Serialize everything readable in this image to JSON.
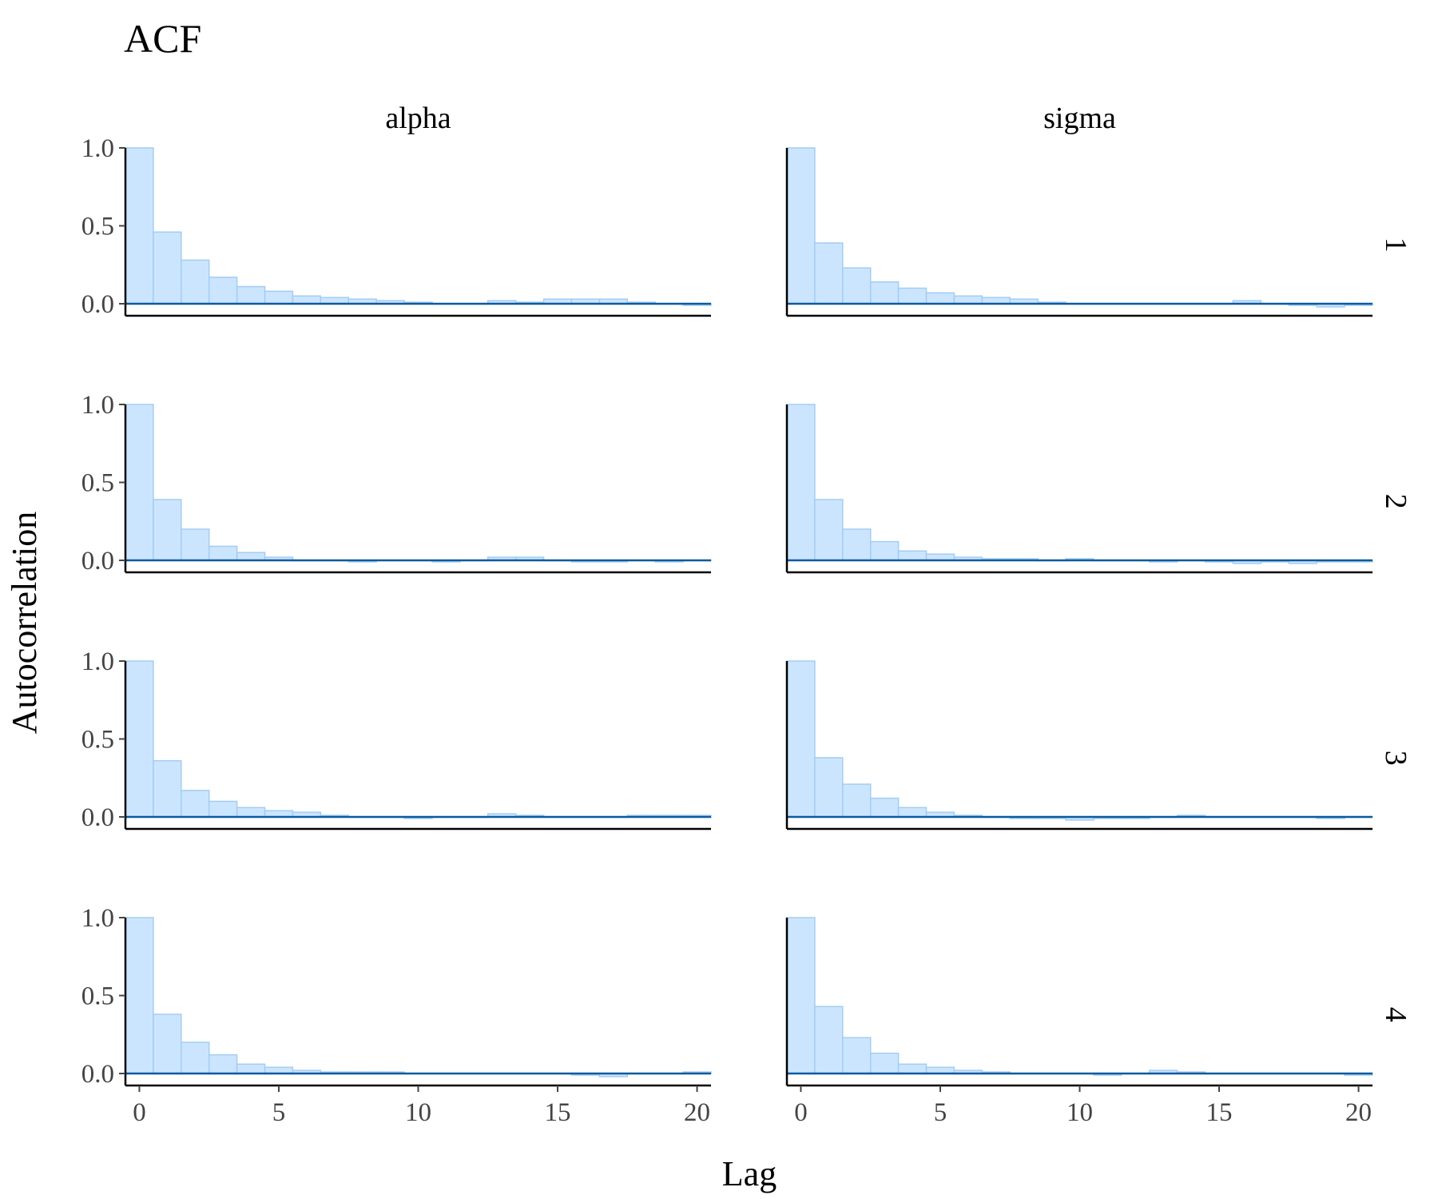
{
  "chart_data": {
    "type": "bar",
    "title": "ACF",
    "xlabel": "Lag",
    "ylabel": "Autocorrelation",
    "x_ticks": [
      0,
      5,
      10,
      15,
      20
    ],
    "y_ticks": [
      "0.0",
      "0.5",
      "1.0"
    ],
    "xlim": [
      -0.5,
      20.5
    ],
    "ylim": [
      -0.07,
      1.1
    ],
    "lags": [
      0,
      1,
      2,
      3,
      4,
      5,
      6,
      7,
      8,
      9,
      10,
      11,
      12,
      13,
      14,
      15,
      16,
      17,
      18,
      19,
      20
    ],
    "columns": [
      "alpha",
      "sigma"
    ],
    "rows": [
      "1",
      "2",
      "3",
      "4"
    ],
    "colors": {
      "bar_fill": "#cce5ff",
      "bar_outline": "#a3cdf2",
      "zero_line": "#0a5aa0"
    },
    "panels": [
      {
        "column": "alpha",
        "row": "1",
        "values": [
          1.0,
          0.46,
          0.28,
          0.17,
          0.11,
          0.08,
          0.05,
          0.04,
          0.03,
          0.02,
          0.01,
          0.0,
          0.0,
          0.02,
          0.01,
          0.03,
          0.03,
          0.03,
          0.01,
          0.0,
          -0.01
        ]
      },
      {
        "column": "sigma",
        "row": "1",
        "values": [
          1.0,
          0.39,
          0.23,
          0.14,
          0.1,
          0.07,
          0.05,
          0.04,
          0.03,
          0.01,
          0.0,
          0.0,
          0.0,
          0.0,
          0.0,
          0.0,
          0.02,
          0.0,
          -0.01,
          -0.02,
          -0.01
        ]
      },
      {
        "column": "alpha",
        "row": "2",
        "values": [
          1.0,
          0.39,
          0.2,
          0.09,
          0.05,
          0.02,
          0.0,
          0.0,
          -0.01,
          0.0,
          0.0,
          -0.01,
          0.0,
          0.02,
          0.02,
          0.0,
          -0.01,
          -0.01,
          0.0,
          -0.01,
          0.0
        ]
      },
      {
        "column": "sigma",
        "row": "2",
        "values": [
          1.0,
          0.39,
          0.2,
          0.12,
          0.06,
          0.04,
          0.02,
          0.01,
          0.01,
          0.0,
          0.01,
          0.0,
          0.0,
          -0.01,
          0.0,
          -0.01,
          -0.02,
          -0.01,
          -0.02,
          -0.01,
          -0.01
        ]
      },
      {
        "column": "alpha",
        "row": "3",
        "values": [
          1.0,
          0.36,
          0.17,
          0.1,
          0.06,
          0.04,
          0.03,
          0.01,
          0.0,
          0.0,
          -0.01,
          0.0,
          0.0,
          0.02,
          0.01,
          0.0,
          0.0,
          0.0,
          0.01,
          0.01,
          0.01
        ]
      },
      {
        "column": "sigma",
        "row": "3",
        "values": [
          1.0,
          0.38,
          0.21,
          0.12,
          0.06,
          0.03,
          0.01,
          0.0,
          -0.01,
          -0.01,
          -0.02,
          -0.01,
          -0.01,
          0.0,
          0.01,
          0.0,
          0.0,
          0.0,
          0.0,
          -0.01,
          0.0
        ]
      },
      {
        "column": "alpha",
        "row": "4",
        "values": [
          1.0,
          0.38,
          0.2,
          0.12,
          0.06,
          0.04,
          0.02,
          0.01,
          0.01,
          0.01,
          0.0,
          0.0,
          0.0,
          0.0,
          0.0,
          0.0,
          -0.01,
          -0.02,
          0.0,
          0.0,
          0.01
        ]
      },
      {
        "column": "sigma",
        "row": "4",
        "values": [
          1.0,
          0.43,
          0.23,
          0.13,
          0.06,
          0.04,
          0.02,
          0.01,
          0.0,
          0.0,
          0.0,
          -0.01,
          0.0,
          0.02,
          0.01,
          0.0,
          0.0,
          0.0,
          0.0,
          0.0,
          -0.01
        ]
      }
    ]
  }
}
